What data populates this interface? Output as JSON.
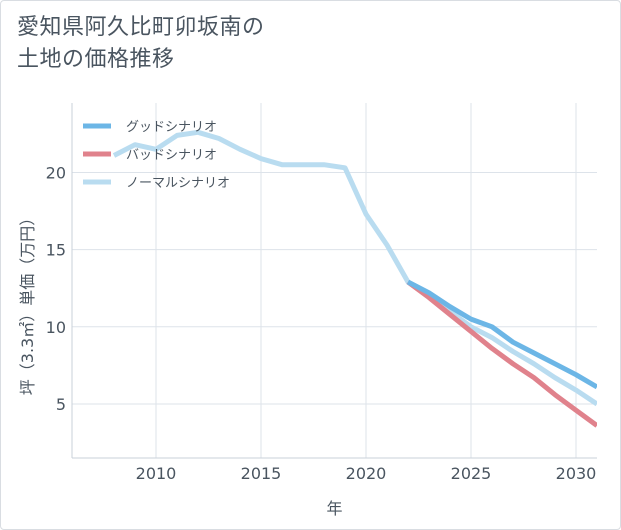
{
  "title_lines": [
    "愛知県阿久比町卯坂南の",
    "土地の価格推移"
  ],
  "chart_data": {
    "type": "line",
    "title": "愛知県阿久比町卯坂南の土地の価格推移",
    "xlabel": "年",
    "ylabel": "坪（3.3㎡）単価（万円）",
    "xlim": [
      2006,
      2031
    ],
    "ylim": [
      1.5,
      24.5
    ],
    "xticks": [
      2010,
      2015,
      2020,
      2025,
      2030
    ],
    "yticks": [
      5,
      10,
      15,
      20
    ],
    "grid": true,
    "legend_position": "top-left",
    "series": [
      {
        "name": "グッドシナリオ",
        "color": "#6cb6e6",
        "points": [
          [
            2022,
            12.9
          ],
          [
            2023,
            12.2
          ],
          [
            2024,
            11.3
          ],
          [
            2025,
            10.5
          ],
          [
            2026,
            10.0
          ],
          [
            2027,
            9.0
          ],
          [
            2028,
            8.3
          ],
          [
            2029,
            7.6
          ],
          [
            2030,
            6.9
          ],
          [
            2031,
            6.1
          ]
        ]
      },
      {
        "name": "バッドシナリオ",
        "color": "#e0828c",
        "points": [
          [
            2022,
            12.9
          ],
          [
            2023,
            11.9
          ],
          [
            2024,
            10.8
          ],
          [
            2025,
            9.7
          ],
          [
            2026,
            8.6
          ],
          [
            2027,
            7.6
          ],
          [
            2028,
            6.7
          ],
          [
            2029,
            5.6
          ],
          [
            2030,
            4.6
          ],
          [
            2031,
            3.6
          ]
        ]
      },
      {
        "name": "ノーマルシナリオ",
        "color": "#b9dcf0",
        "points": [
          [
            2008,
            21.1
          ],
          [
            2009,
            21.8
          ],
          [
            2010,
            21.5
          ],
          [
            2011,
            22.4
          ],
          [
            2012,
            22.6
          ],
          [
            2013,
            22.2
          ],
          [
            2014,
            21.5
          ],
          [
            2015,
            20.9
          ],
          [
            2016,
            20.5
          ],
          [
            2017,
            20.5
          ],
          [
            2018,
            20.5
          ],
          [
            2019,
            20.3
          ],
          [
            2020,
            17.3
          ],
          [
            2021,
            15.3
          ],
          [
            2022,
            12.9
          ],
          [
            2023,
            12.0
          ],
          [
            2024,
            11.0
          ],
          [
            2025,
            10.0
          ],
          [
            2026,
            9.3
          ],
          [
            2027,
            8.4
          ],
          [
            2028,
            7.6
          ],
          [
            2029,
            6.7
          ],
          [
            2030,
            5.9
          ],
          [
            2031,
            5.0
          ]
        ]
      }
    ]
  }
}
